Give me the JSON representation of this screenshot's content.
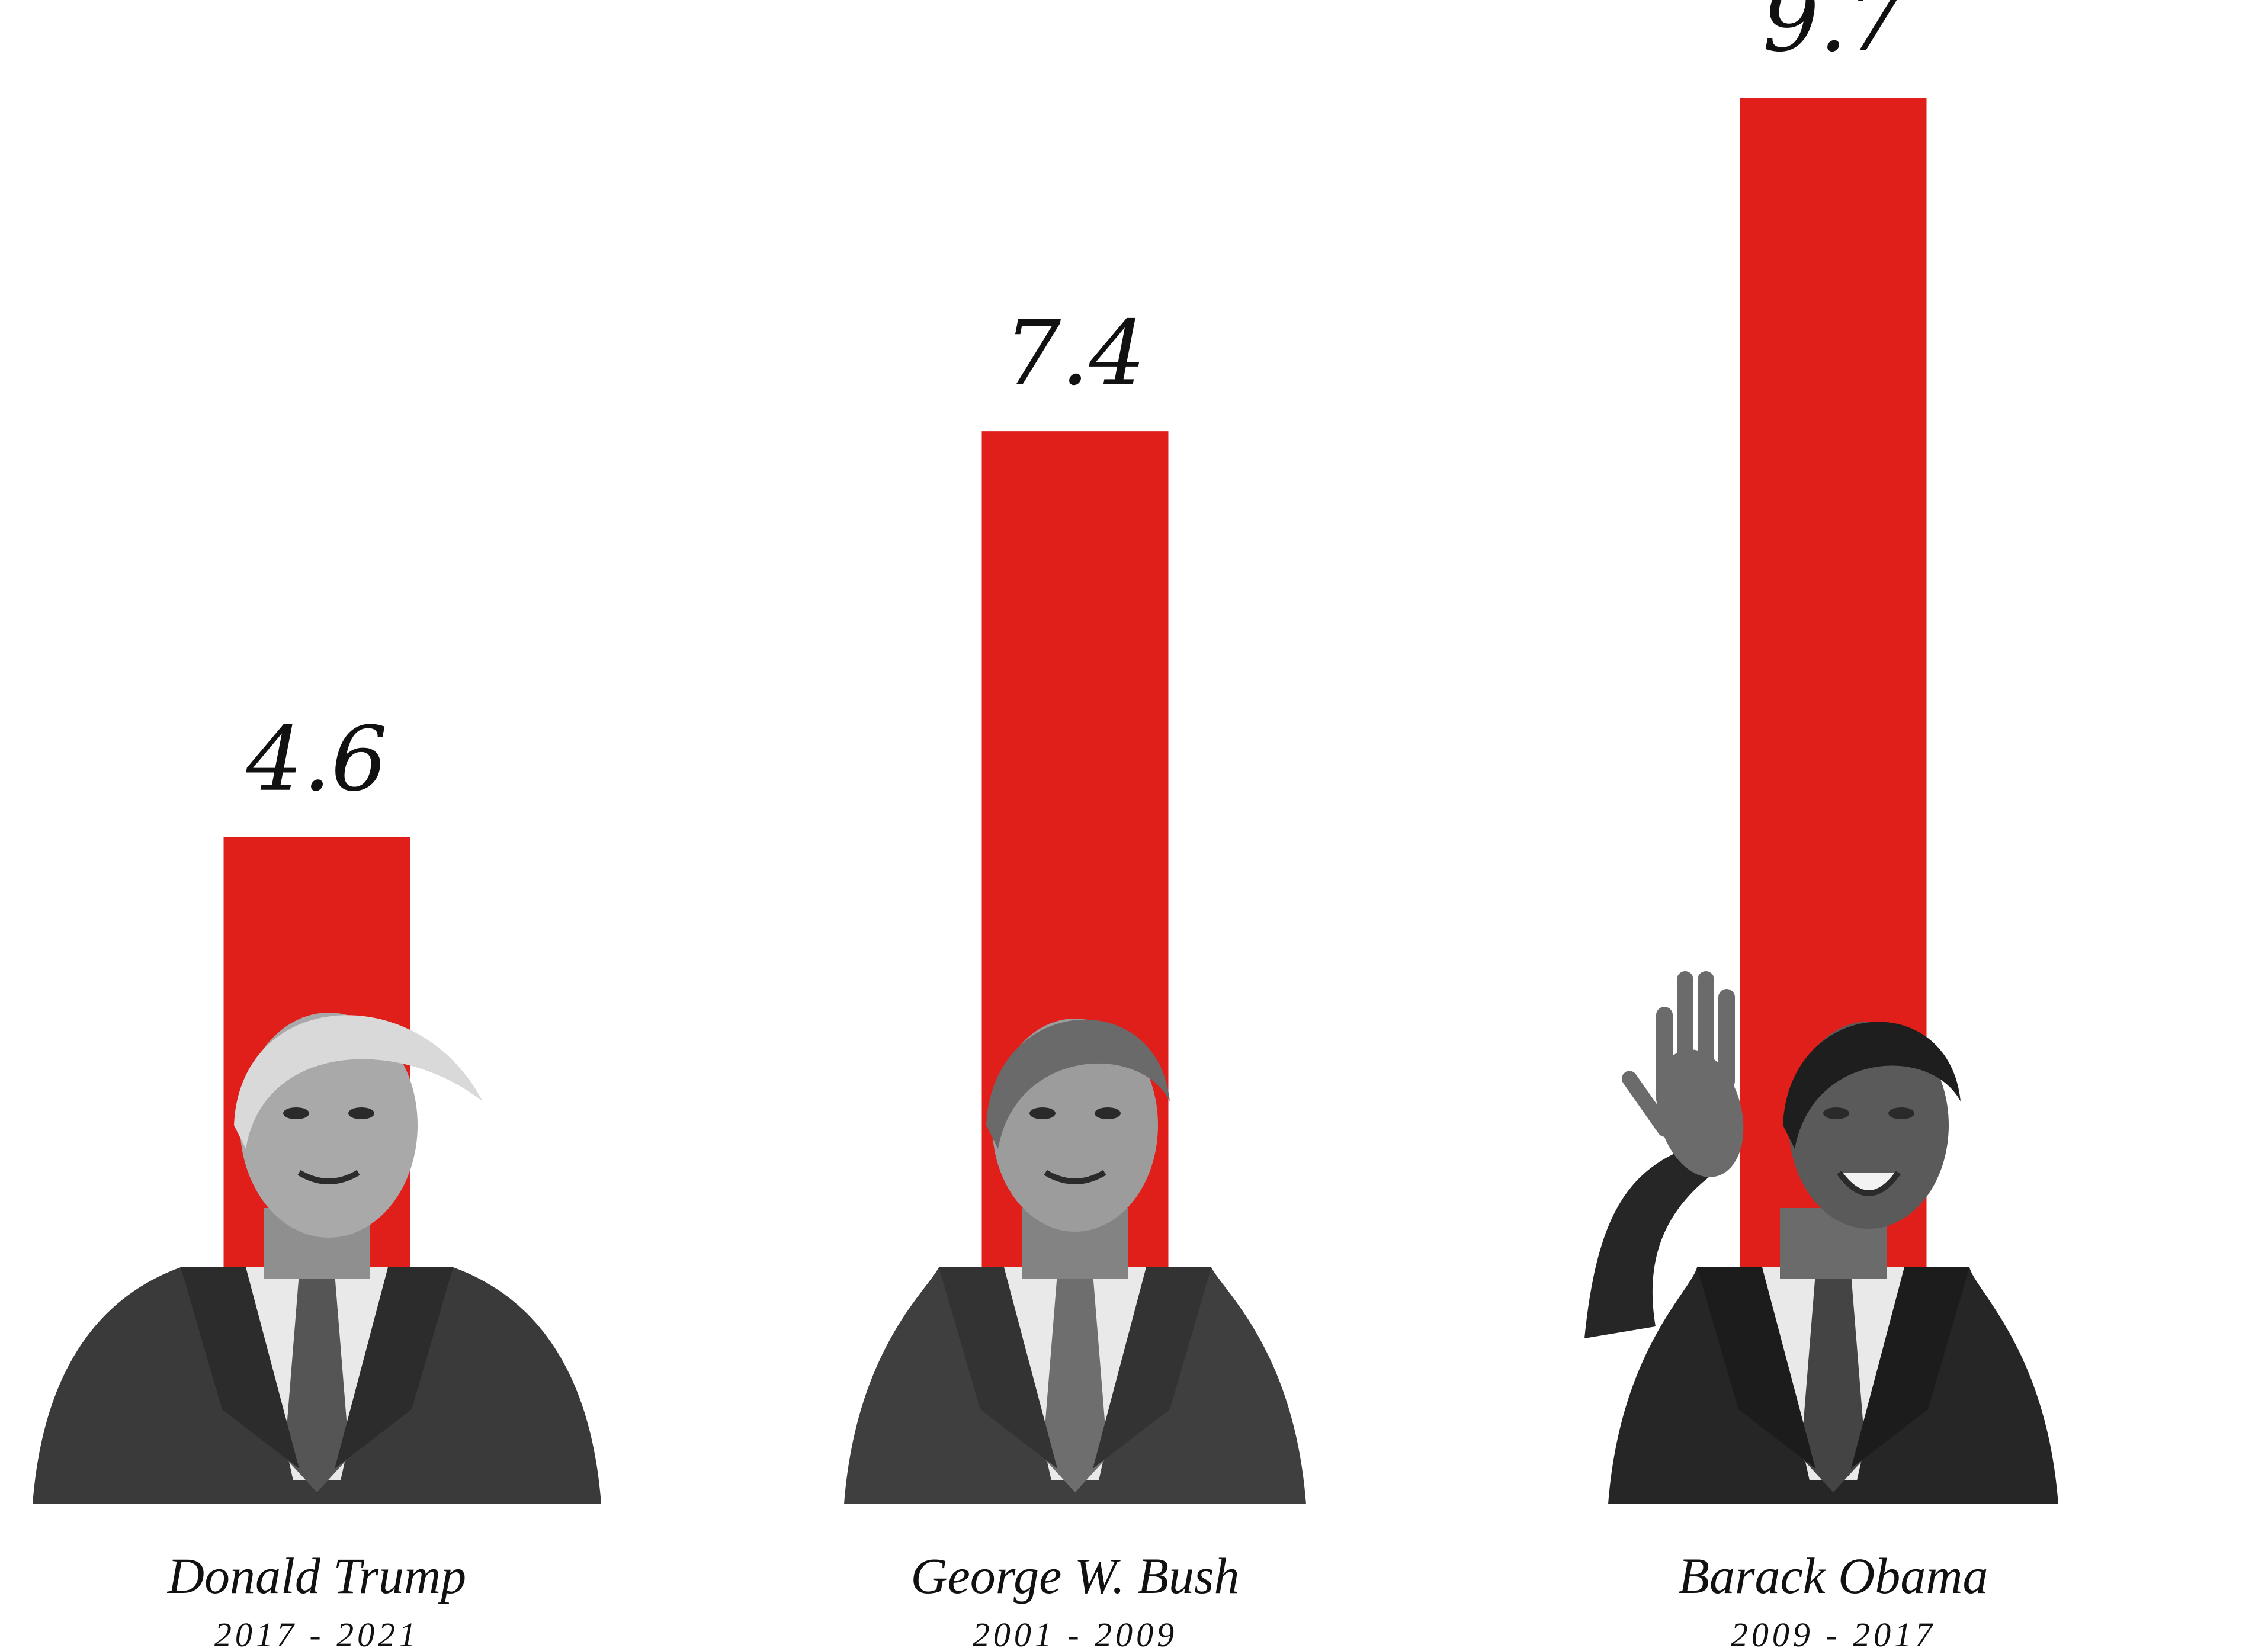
{
  "chart_data": {
    "type": "bar",
    "categories": [
      "Donald Trump",
      "George W. Bush",
      "Barack Obama"
    ],
    "terms": [
      "2017 - 2021",
      "2001 - 2009",
      "2009 - 2017"
    ],
    "values": [
      4.6,
      7.4,
      9.7
    ],
    "value_labels": [
      "4.6",
      "7.4",
      "9.7"
    ],
    "title": "",
    "xlabel": "",
    "ylabel": "",
    "ylim": [
      0,
      9.7
    ],
    "grid": false,
    "legend": "none",
    "bar_color": "#e01e1a",
    "portraits": [
      "trump-portrait-icon",
      "bush-portrait-icon",
      "obama-portrait-icon"
    ]
  }
}
